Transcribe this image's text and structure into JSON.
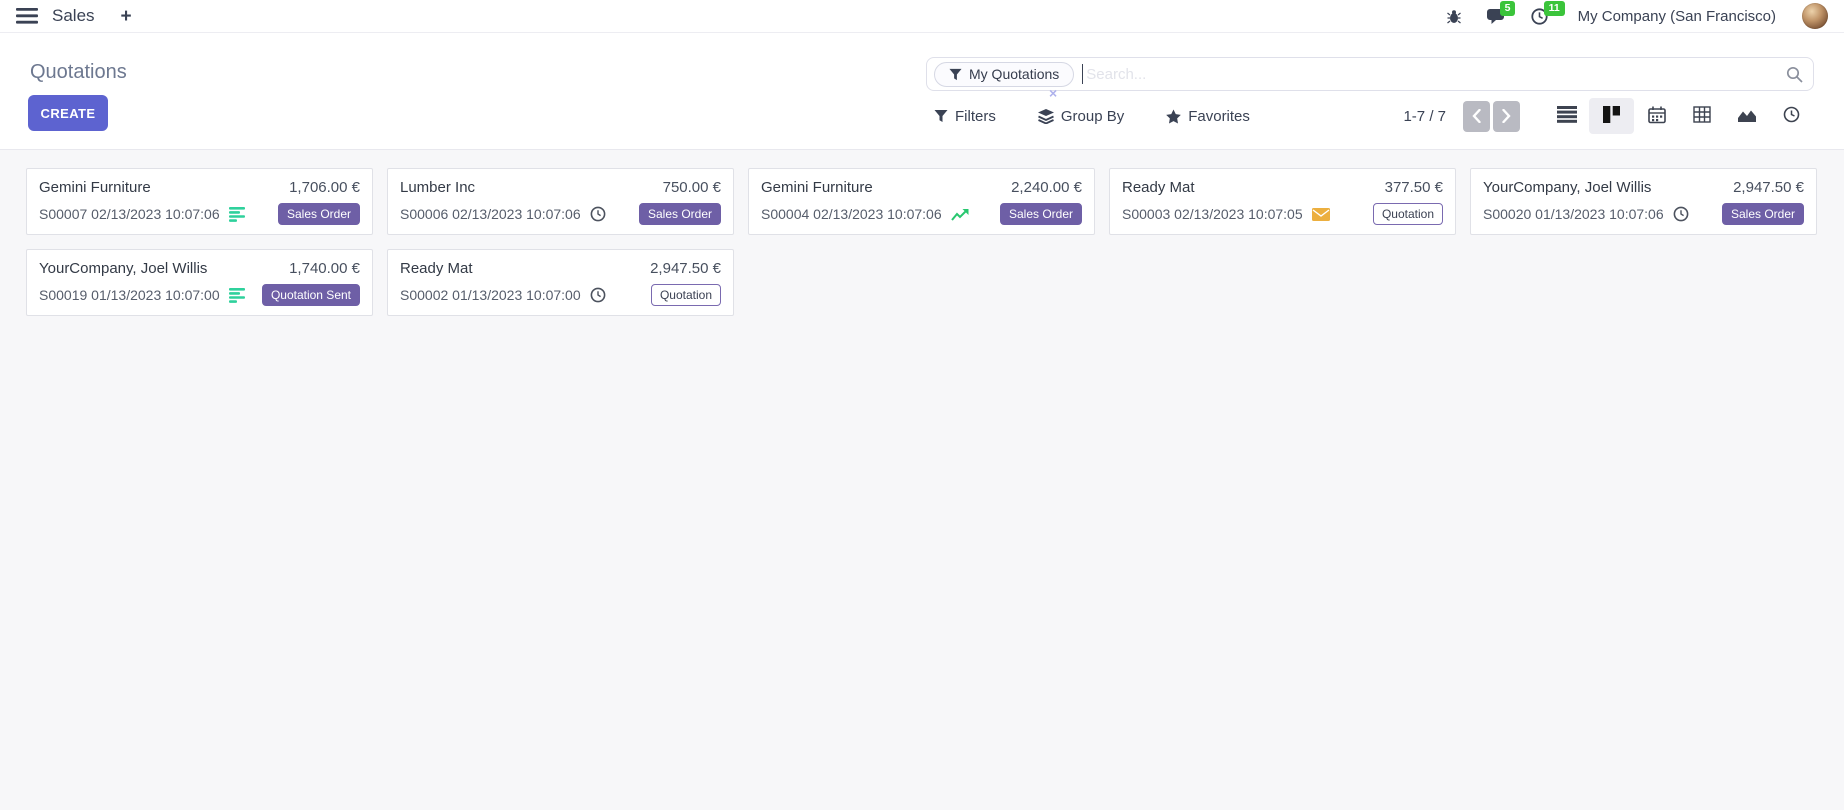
{
  "topbar": {
    "app_name": "Sales",
    "plus_label": "+",
    "messages_count": "5",
    "activities_count": "11",
    "company_name": "My Company (San Francisco)"
  },
  "control_panel": {
    "title": "Quotations",
    "create_label": "CREATE",
    "search": {
      "facet_label": "My Quotations",
      "placeholder": "Search...",
      "remove_label": "×"
    },
    "filters_label": "Filters",
    "group_by_label": "Group By",
    "favorites_label": "Favorites",
    "pager_text": "1-7 / 7"
  },
  "view_switcher": [
    {
      "icon": "list",
      "active": false
    },
    {
      "icon": "kanban",
      "active": true
    },
    {
      "icon": "calendar",
      "active": false
    },
    {
      "icon": "pivot",
      "active": false
    },
    {
      "icon": "graph",
      "active": false
    },
    {
      "icon": "activity",
      "active": false
    }
  ],
  "cards": [
    {
      "customer": "Gemini Furniture",
      "amount": "1,706.00 €",
      "reference": "S00007 02/13/2023 10:07:06",
      "activity_icon": "tasks-green",
      "badge": {
        "label": "Sales Order",
        "style": "solid"
      }
    },
    {
      "customer": "Lumber Inc",
      "amount": "750.00 €",
      "reference": "S00006 02/13/2023 10:07:06",
      "activity_icon": "clock-gray",
      "badge": {
        "label": "Sales Order",
        "style": "solid"
      }
    },
    {
      "customer": "Gemini Furniture",
      "amount": "2,240.00 €",
      "reference": "S00004 02/13/2023 10:07:06",
      "activity_icon": "chart-green",
      "badge": {
        "label": "Sales Order",
        "style": "solid"
      }
    },
    {
      "customer": "Ready Mat",
      "amount": "377.50 €",
      "reference": "S00003 02/13/2023 10:07:05",
      "activity_icon": "envelope-orange",
      "badge": {
        "label": "Quotation",
        "style": "outline"
      }
    },
    {
      "customer": "YourCompany, Joel Willis",
      "amount": "2,947.50 €",
      "reference": "S00020 01/13/2023 10:07:06",
      "activity_icon": "clock-gray",
      "badge": {
        "label": "Sales Order",
        "style": "solid"
      }
    },
    {
      "customer": "YourCompany, Joel Willis",
      "amount": "1,740.00 €",
      "reference": "S00019 01/13/2023 10:07:00",
      "activity_icon": "tasks-green",
      "badge": {
        "label": "Quotation Sent",
        "style": "solid"
      }
    },
    {
      "customer": "Ready Mat",
      "amount": "2,947.50 €",
      "reference": "S00002 01/13/2023 10:07:00",
      "activity_icon": "clock-gray",
      "badge": {
        "label": "Quotation",
        "style": "outline"
      }
    }
  ],
  "colors": {
    "accent": "#5d63d0",
    "badge-purple": "#6e5fa6",
    "count-green": "#3bc43b",
    "activity-green": "#2fd19c",
    "chart-green": "#28c76f",
    "envelope-orange": "#ecaf3f"
  }
}
